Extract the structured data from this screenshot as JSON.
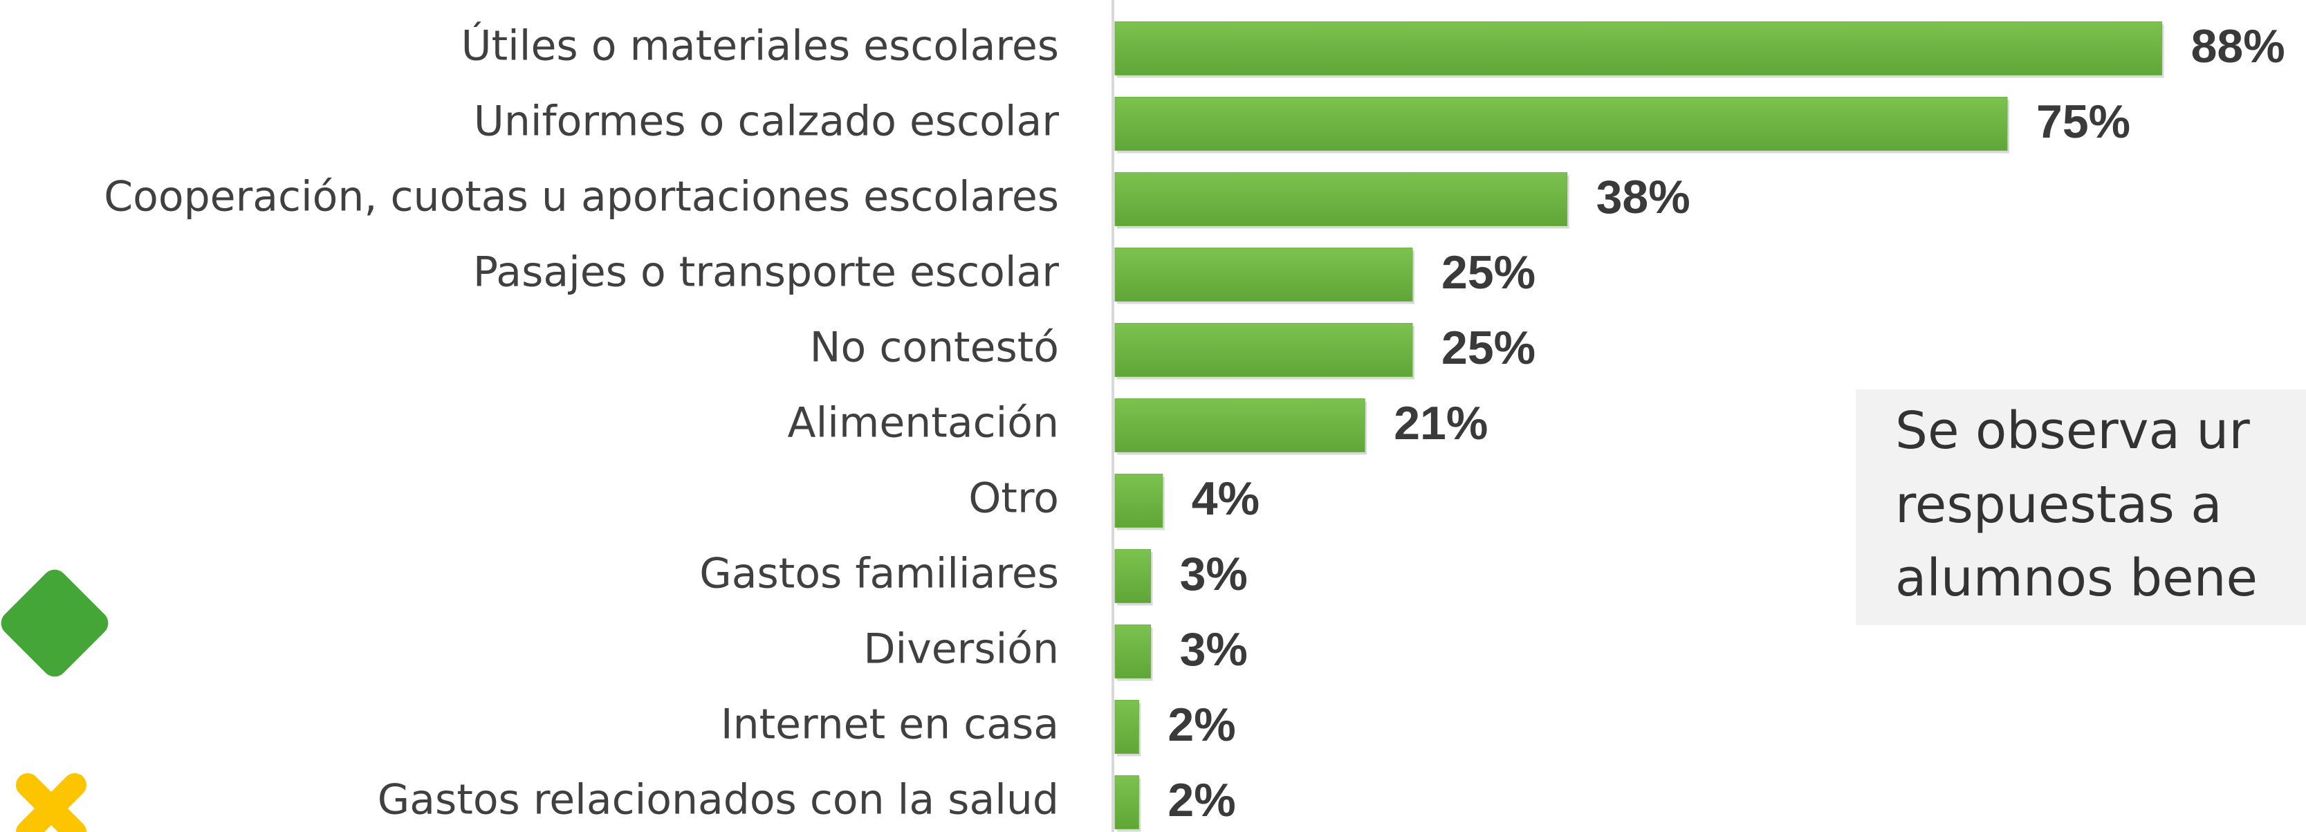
{
  "chart_data": {
    "type": "bar",
    "orientation": "horizontal",
    "categories": [
      "Útiles o materiales escolares",
      "Uniformes o calzado escolar",
      "Cooperación, cuotas u aportaciones escolares",
      "Pasajes o transporte escolar",
      "No contestó",
      "Alimentación",
      "Otro",
      "Gastos familiares",
      "Diversión",
      "Internet en casa",
      "Gastos relacionados con la salud"
    ],
    "values": [
      88,
      75,
      38,
      25,
      25,
      21,
      4,
      3,
      3,
      2,
      2
    ],
    "value_labels": [
      "88%",
      "75%",
      "38%",
      "25%",
      "25%",
      "21%",
      "4%",
      "3%",
      "3%",
      "2%",
      "2%"
    ],
    "color": "#6cb444"
  },
  "note": {
    "lines": [
      "Se observa ur",
      "respuestas a",
      "alumnos bene"
    ]
  }
}
